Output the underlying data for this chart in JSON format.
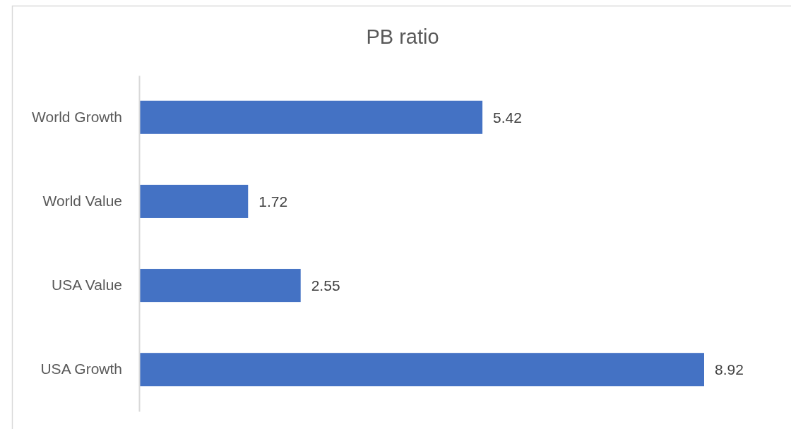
{
  "chart_data": {
    "type": "bar",
    "orientation": "horizontal",
    "title": "PB ratio",
    "categories": [
      "World Growth",
      "World Value",
      "USA Value",
      "USA Growth"
    ],
    "values": [
      5.42,
      1.72,
      2.55,
      8.92
    ],
    "color": "#4472c4",
    "tick_labels": "y",
    "data_labels": true
  }
}
